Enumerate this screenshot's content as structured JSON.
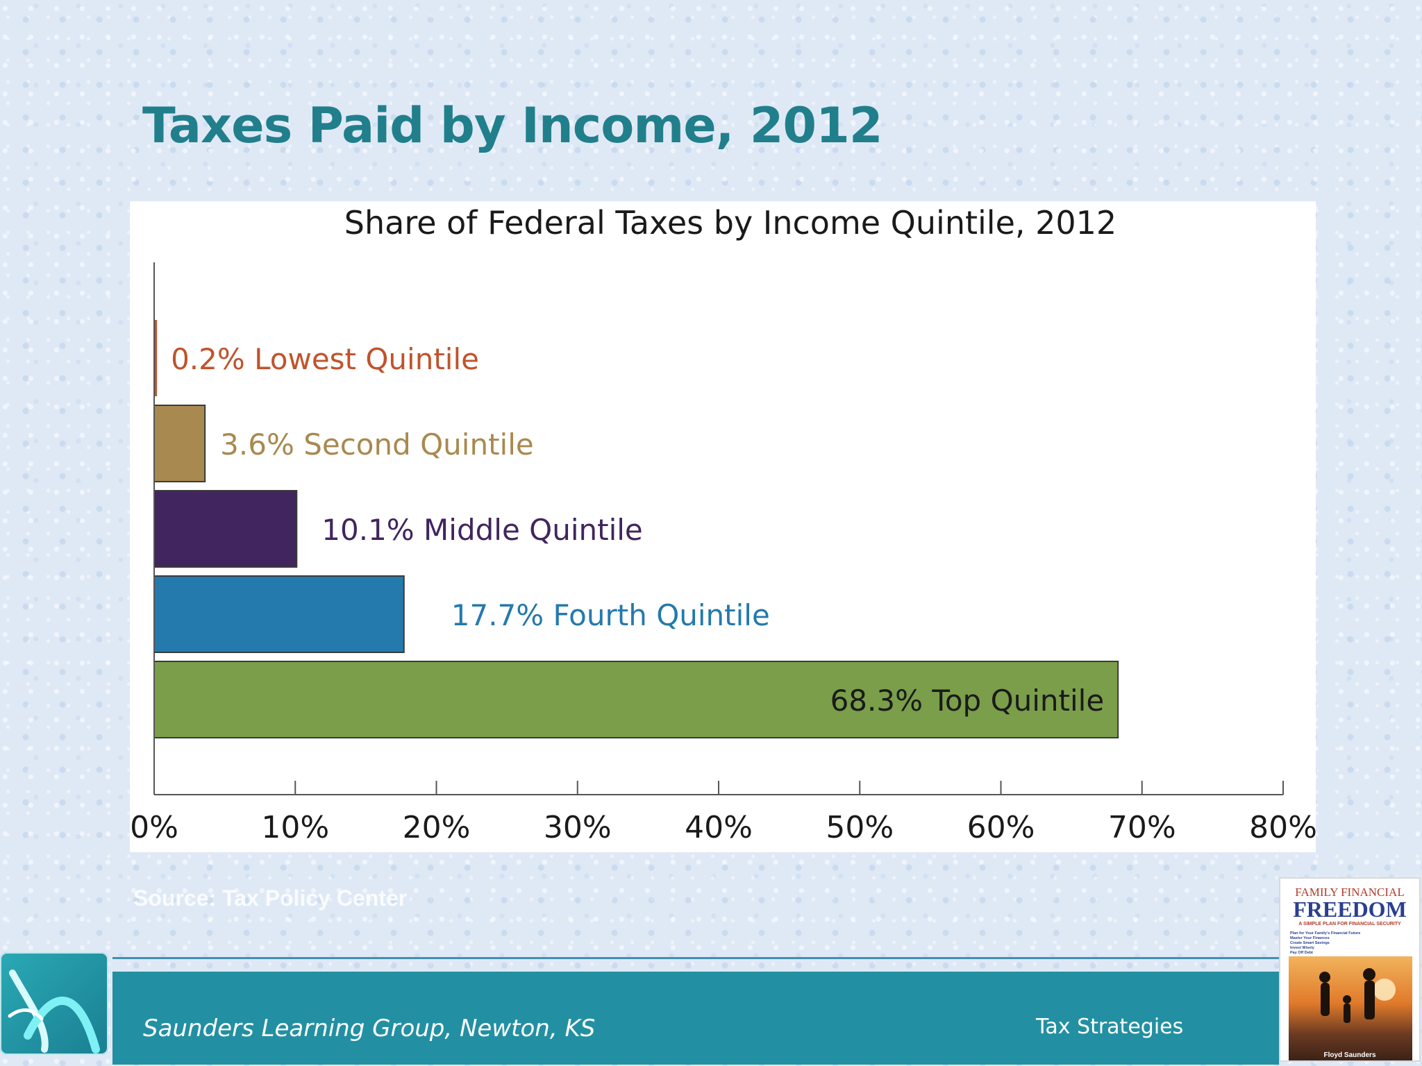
{
  "slide": {
    "title": "Taxes Paid by Income, 2012",
    "source": "Source: Tax Policy Center"
  },
  "footer": {
    "organization": "Saunders Learning Group, Newton, KS",
    "topic": "Tax Strategies"
  },
  "book": {
    "title_top": "FAMILY FINANCIAL",
    "title_main": "FREEDOM",
    "subtitle": "A SIMPLE PLAN FOR FINANCIAL SECURITY",
    "bullets": [
      "Plan for Your Family's Financial Future",
      "Master Your Finances",
      "Create Smart Savings",
      "Invest Wisely",
      "Pay Off Debt"
    ],
    "author": "Floyd Saunders"
  },
  "colors": {
    "title": "#217f8c",
    "footer_bar": "#2290a2",
    "lowest": "#c0532b",
    "second": "#a8894f",
    "middle": "#41255e",
    "fourth": "#2479ad",
    "top": "#7a9e4a"
  },
  "icons": {
    "logo": "swoosh-logo-icon"
  },
  "chart_data": {
    "type": "bar",
    "orientation": "horizontal",
    "title": "Share of Federal Taxes by Income Quintile, 2012",
    "categories": [
      "Lowest Quintile",
      "Second Quintile",
      "Middle Quintile",
      "Fourth Quintile",
      "Top Quintile"
    ],
    "values": [
      0.2,
      3.6,
      10.1,
      17.7,
      68.3
    ],
    "data_labels": [
      "0.2% Lowest Quintile",
      "3.6% Second Quintile",
      "10.1% Middle Quintile",
      "17.7% Fourth Quintile",
      "68.3% Top Quintile"
    ],
    "bar_colors": [
      "#c0532b",
      "#a8894f",
      "#41255e",
      "#2479ad",
      "#7a9e4a"
    ],
    "label_colors": [
      "#c0532b",
      "#a8894f",
      "#41255e",
      "#2479ad",
      "#1a1a1a"
    ],
    "xlim": [
      0,
      80
    ],
    "xticks": [
      0,
      10,
      20,
      30,
      40,
      50,
      60,
      70,
      80
    ],
    "xtick_labels": [
      "0%",
      "10%",
      "20%",
      "30%",
      "40%",
      "50%",
      "60%",
      "70%",
      "80%"
    ],
    "xlabel": "",
    "ylabel": "",
    "grid": false,
    "legend": "none"
  }
}
